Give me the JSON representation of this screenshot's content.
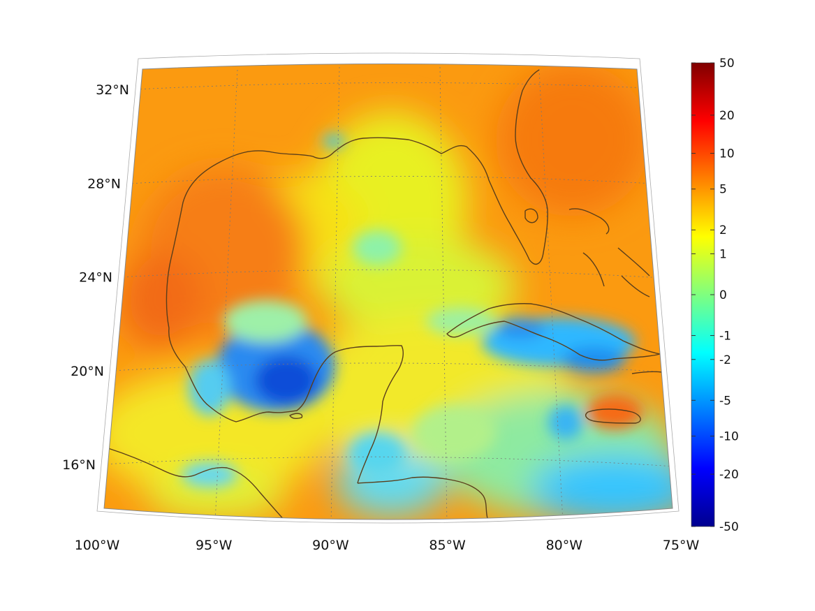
{
  "map": {
    "region": "Gulf of Mexico and Caribbean",
    "lon_range": [
      -100,
      -75
    ],
    "lat_range": [
      14,
      32
    ],
    "projection": "conic",
    "grid": true,
    "coastline_color": "#5a3e1b",
    "lon_ticks": [
      {
        "value": -100,
        "label": "100°W"
      },
      {
        "value": -95,
        "label": "95°W"
      },
      {
        "value": -90,
        "label": "90°W"
      },
      {
        "value": -85,
        "label": "85°W"
      },
      {
        "value": -80,
        "label": "80°W"
      },
      {
        "value": -75,
        "label": "75°W"
      }
    ],
    "lat_ticks": [
      {
        "value": 32,
        "label": "32°N"
      },
      {
        "value": 28,
        "label": "28°N"
      },
      {
        "value": 24,
        "label": "24°N"
      },
      {
        "value": 20,
        "label": "20°N"
      },
      {
        "value": 16,
        "label": "16°N"
      }
    ]
  },
  "colorbar": {
    "colormap": "jet",
    "placement": "right",
    "scale": "symmetric-log",
    "range": [
      -50,
      50
    ],
    "ticks": [
      {
        "value": 50,
        "label": "50"
      },
      {
        "value": 20,
        "label": "20"
      },
      {
        "value": 10,
        "label": "10"
      },
      {
        "value": 5,
        "label": "5"
      },
      {
        "value": 2,
        "label": "2"
      },
      {
        "value": 1,
        "label": "1"
      },
      {
        "value": 0,
        "label": "0"
      },
      {
        "value": -1,
        "label": "-1"
      },
      {
        "value": -2,
        "label": "-2"
      },
      {
        "value": -5,
        "label": "-5"
      },
      {
        "value": -10,
        "label": "-10"
      },
      {
        "value": -20,
        "label": "-20"
      },
      {
        "value": -50,
        "label": "-50"
      }
    ]
  }
}
